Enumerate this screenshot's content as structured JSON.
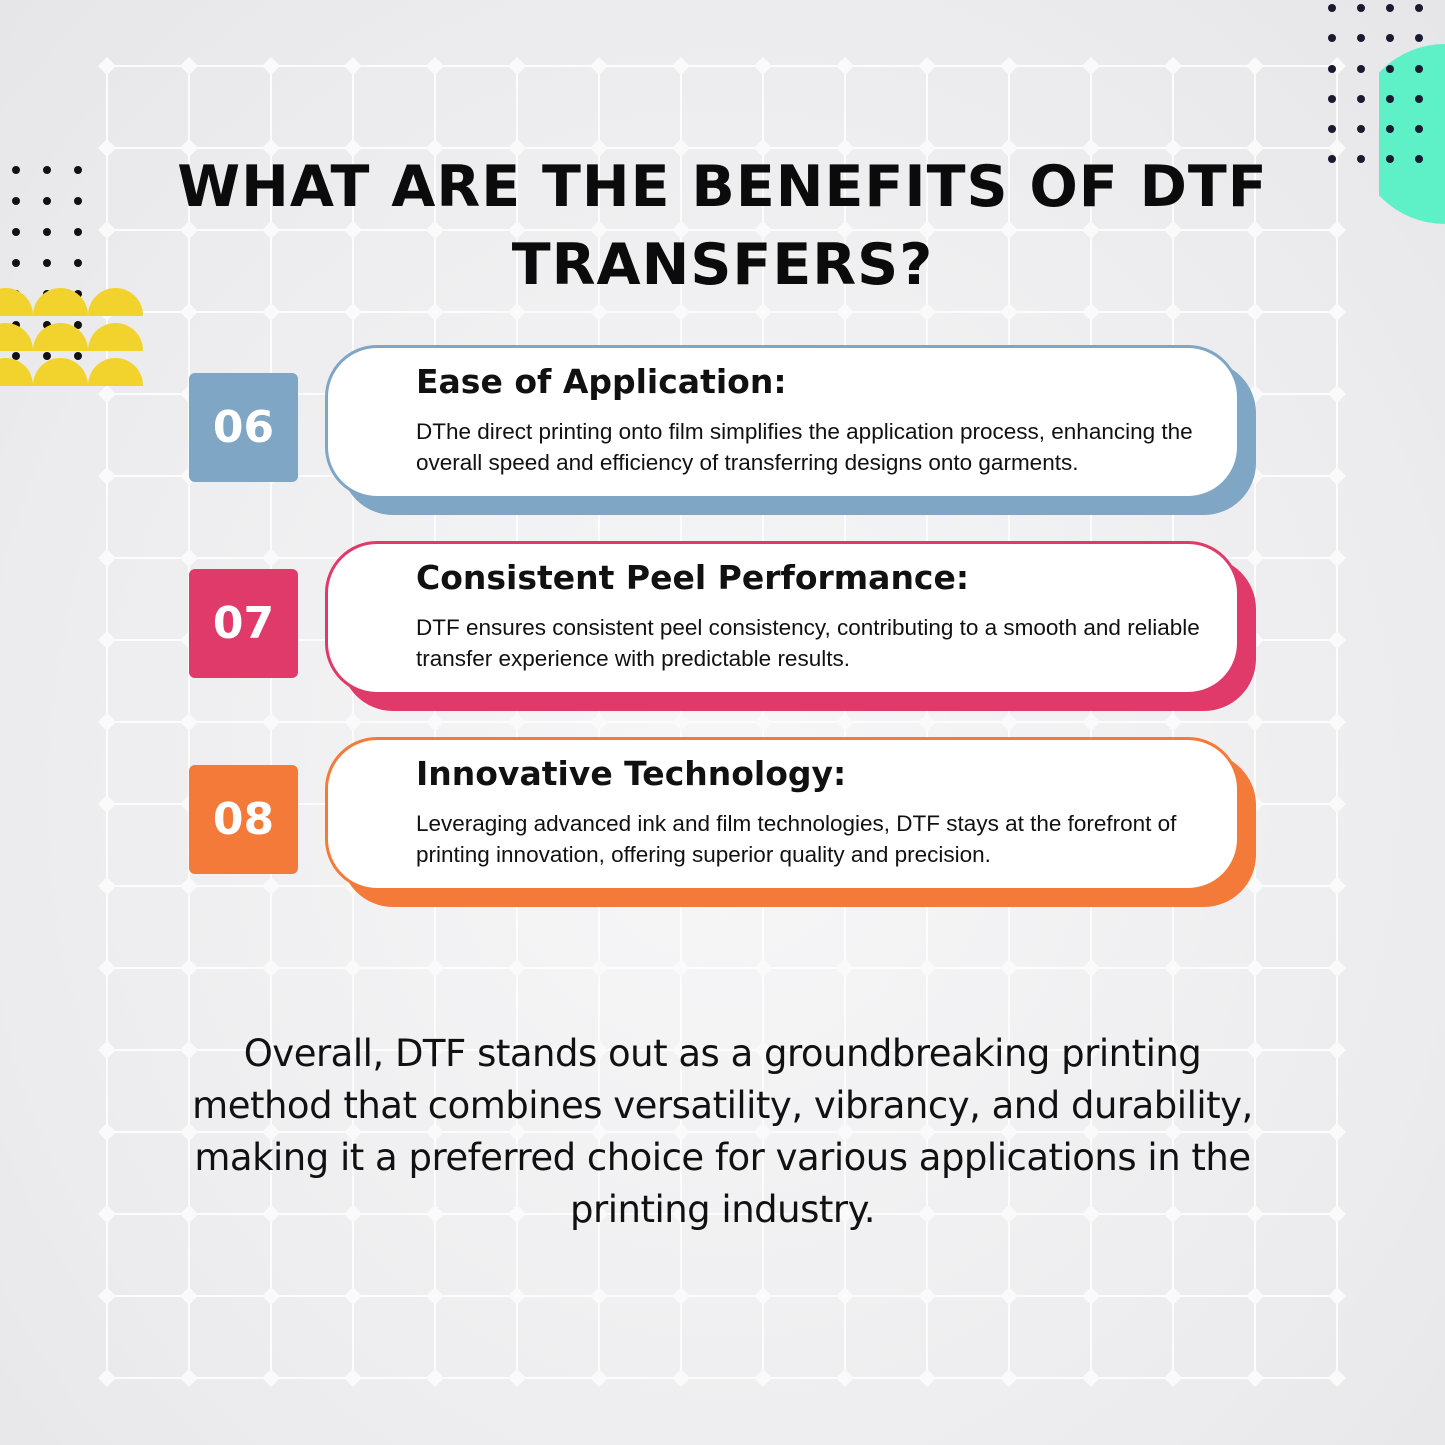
{
  "title": "WHAT ARE THE BENEFITS OF DTF TRANSFERS?",
  "items": [
    {
      "number": "06",
      "heading": "Ease of Application:",
      "text": "DThe direct printing onto film simplifies the application process, enhancing the overall speed and efficiency of transferring designs onto garments.",
      "color": "#7fa6c4"
    },
    {
      "number": "07",
      "heading": "Consistent Peel Performance:",
      "text": "DTF ensures consistent peel consistency, contributing to a smooth and reliable transfer experience with predictable results.",
      "color": "#df3a69"
    },
    {
      "number": "08",
      "heading": "Innovative Technology:",
      "text": "Leveraging advanced ink and film technologies, DTF stays at the forefront of printing innovation, offering superior quality and precision.",
      "color": "#f47a39"
    }
  ],
  "summary": "Overall, DTF stands out as a groundbreaking printing method that combines versatility, vibrancy, and durability, making it a preferred choice for various applications in the printing industry.",
  "colors": {
    "mint": "#5ef0c6",
    "yellow": "#f2d22c",
    "grid": "#ffffff"
  }
}
